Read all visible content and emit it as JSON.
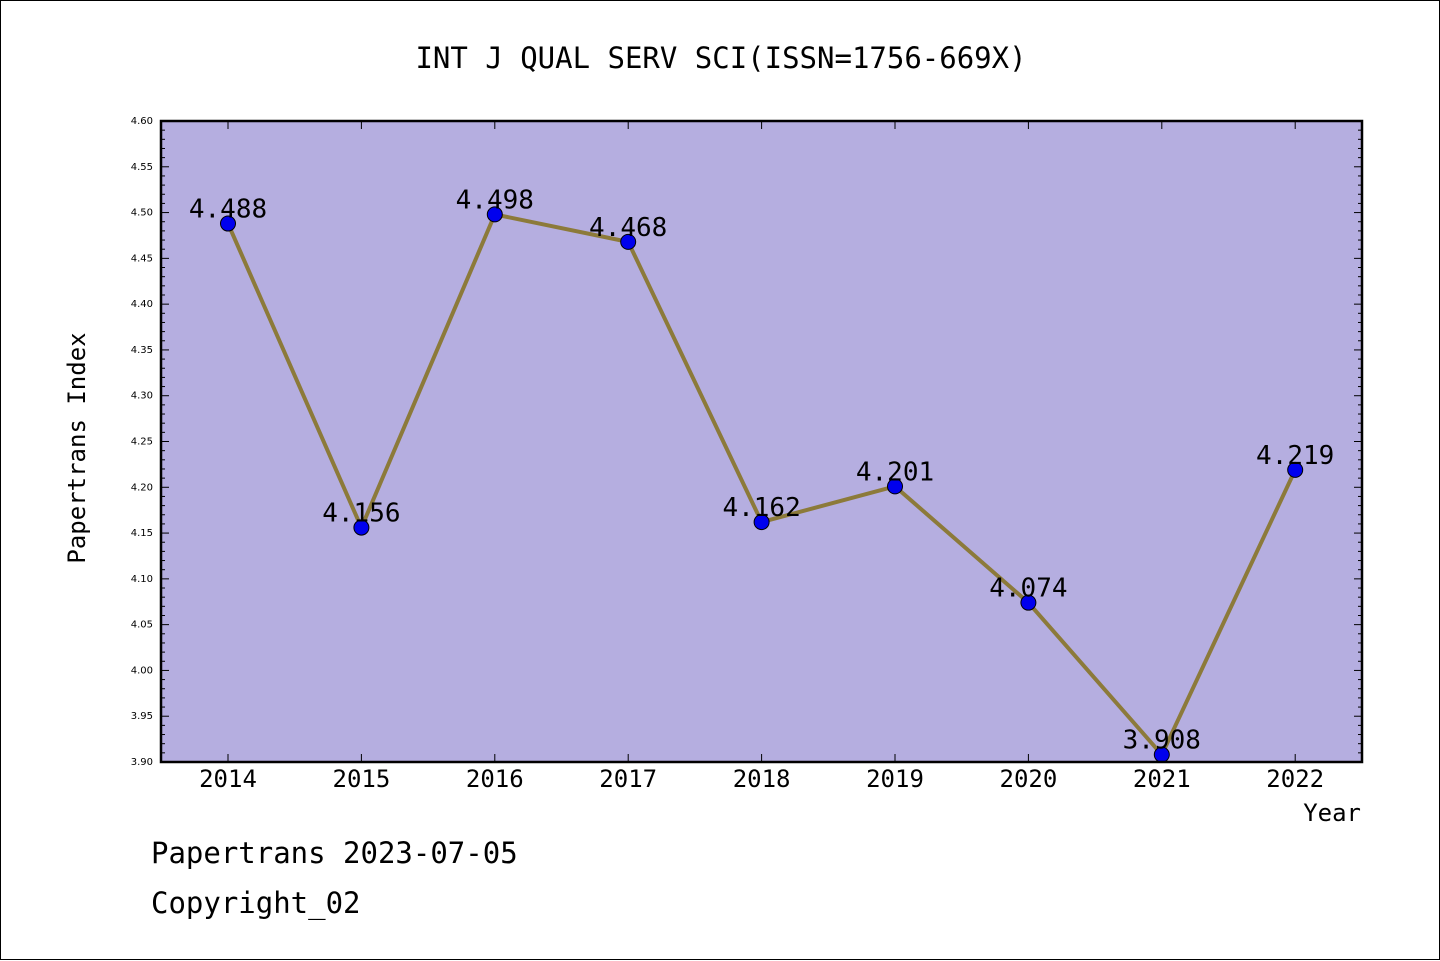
{
  "chart_data": {
    "type": "line",
    "title": "INT J QUAL SERV SCI(ISSN=1756-669X)",
    "xlabel": "Year",
    "ylabel": "Papertrans Index",
    "categories": [
      "2014",
      "2015",
      "2016",
      "2017",
      "2018",
      "2019",
      "2020",
      "2021",
      "2022"
    ],
    "values": [
      4.488,
      4.156,
      4.498,
      4.468,
      4.162,
      4.201,
      4.074,
      3.908,
      4.219
    ],
    "data_labels": [
      "4.488",
      "4.156",
      "4.498",
      "4.468",
      "4.162",
      "4.201",
      "4.074",
      "3.908",
      "4.219"
    ],
    "ylim": [
      3.9,
      4.6
    ],
    "yticks": [
      "3.90",
      "3.95",
      "4.00",
      "4.05",
      "4.10",
      "4.15",
      "4.20",
      "4.25",
      "4.30",
      "4.35",
      "4.40",
      "4.45",
      "4.50",
      "4.55",
      "4.60"
    ],
    "grid": false,
    "legend": "none",
    "colors": {
      "plot_background": "#b5aee0",
      "line": "#8c7a3a",
      "marker": "#0000ee"
    }
  },
  "footer": {
    "line1": "Papertrans 2023-07-05",
    "line2": "Copyright_02"
  }
}
